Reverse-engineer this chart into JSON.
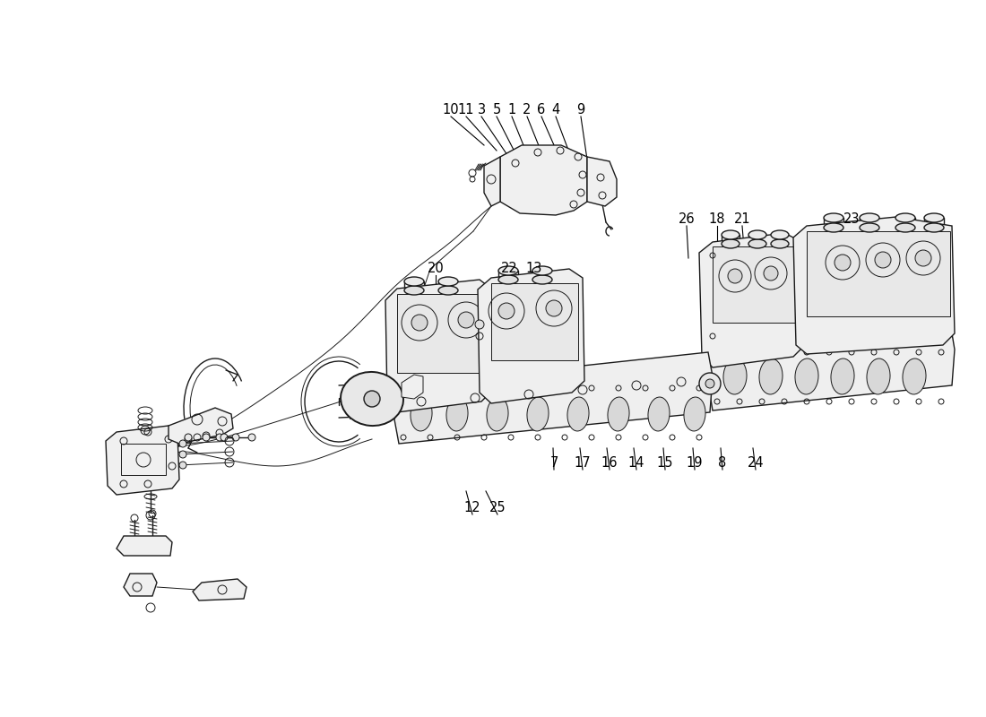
{
  "background_color": "#ffffff",
  "line_color": "#1a1a1a",
  "figsize": [
    11.0,
    8.0
  ],
  "dpi": 100,
  "top_labels": [
    [
      "10",
      503,
      130,
      540,
      162
    ],
    [
      "11",
      520,
      130,
      554,
      168
    ],
    [
      "3",
      537,
      130,
      566,
      173
    ],
    [
      "5",
      554,
      130,
      576,
      173
    ],
    [
      "1",
      571,
      130,
      588,
      172
    ],
    [
      "2",
      588,
      130,
      604,
      170
    ],
    [
      "6",
      604,
      130,
      622,
      171
    ],
    [
      "4",
      620,
      130,
      638,
      178
    ],
    [
      "9",
      648,
      130,
      655,
      178
    ]
  ],
  "mid_labels": [
    [
      "26",
      766,
      252,
      768,
      288
    ],
    [
      "18",
      800,
      252,
      800,
      288
    ],
    [
      "21",
      828,
      252,
      830,
      277
    ],
    [
      "23",
      950,
      252,
      950,
      260
    ]
  ],
  "carb_labels": [
    [
      "20",
      486,
      307,
      486,
      335
    ],
    [
      "22",
      568,
      307,
      562,
      332
    ],
    [
      "13",
      596,
      307,
      588,
      332
    ]
  ],
  "bottom_labels": [
    [
      "7",
      618,
      524,
      617,
      500
    ],
    [
      "17",
      650,
      524,
      647,
      500
    ],
    [
      "16",
      680,
      524,
      677,
      500
    ],
    [
      "14",
      710,
      524,
      707,
      500
    ],
    [
      "15",
      742,
      524,
      740,
      500
    ],
    [
      "19",
      775,
      524,
      773,
      500
    ],
    [
      "8",
      806,
      524,
      804,
      500
    ],
    [
      "24",
      843,
      524,
      840,
      500
    ]
  ],
  "bl_labels": [
    [
      "12",
      527,
      574,
      520,
      548
    ],
    [
      "25",
      555,
      574,
      542,
      548
    ]
  ]
}
